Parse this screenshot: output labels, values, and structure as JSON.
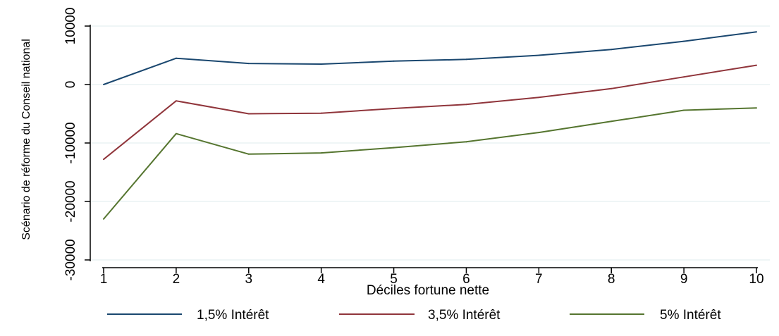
{
  "chart_data": {
    "type": "line",
    "title": "",
    "xlabel": "Déciles fortune nette",
    "ylabel": "Scénario de réforme du Conseil national",
    "x": [
      1,
      2,
      3,
      4,
      5,
      6,
      7,
      8,
      9,
      10
    ],
    "x_ticks": [
      "1",
      "2",
      "3",
      "4",
      "5",
      "6",
      "7",
      "8",
      "9",
      "10"
    ],
    "y_ticks": [
      "10000",
      "0",
      "-10000",
      "-20000",
      "-30000"
    ],
    "y_tick_values": [
      10000,
      0,
      -10000,
      -20000,
      -30000
    ],
    "xlim": [
      1,
      10
    ],
    "ylim": [
      -30000,
      10000
    ],
    "grid": "horizontal",
    "legend_position": "bottom",
    "series": [
      {
        "name": "1,5% Intérêt",
        "color": "#1a476f",
        "values": [
          0,
          4500,
          3600,
          3500,
          4000,
          4300,
          5000,
          6000,
          7400,
          9000
        ]
      },
      {
        "name": "3,5% Intérêt",
        "color": "#90353b",
        "values": [
          -12800,
          -2800,
          -5000,
          -4900,
          -4100,
          -3400,
          -2200,
          -700,
          1300,
          3300
        ]
      },
      {
        "name": "5% Intérêt",
        "color": "#55752f",
        "values": [
          -23000,
          -8400,
          -11900,
          -11700,
          -10800,
          -9800,
          -8200,
          -6300,
          -4400,
          -4000
        ]
      }
    ]
  }
}
